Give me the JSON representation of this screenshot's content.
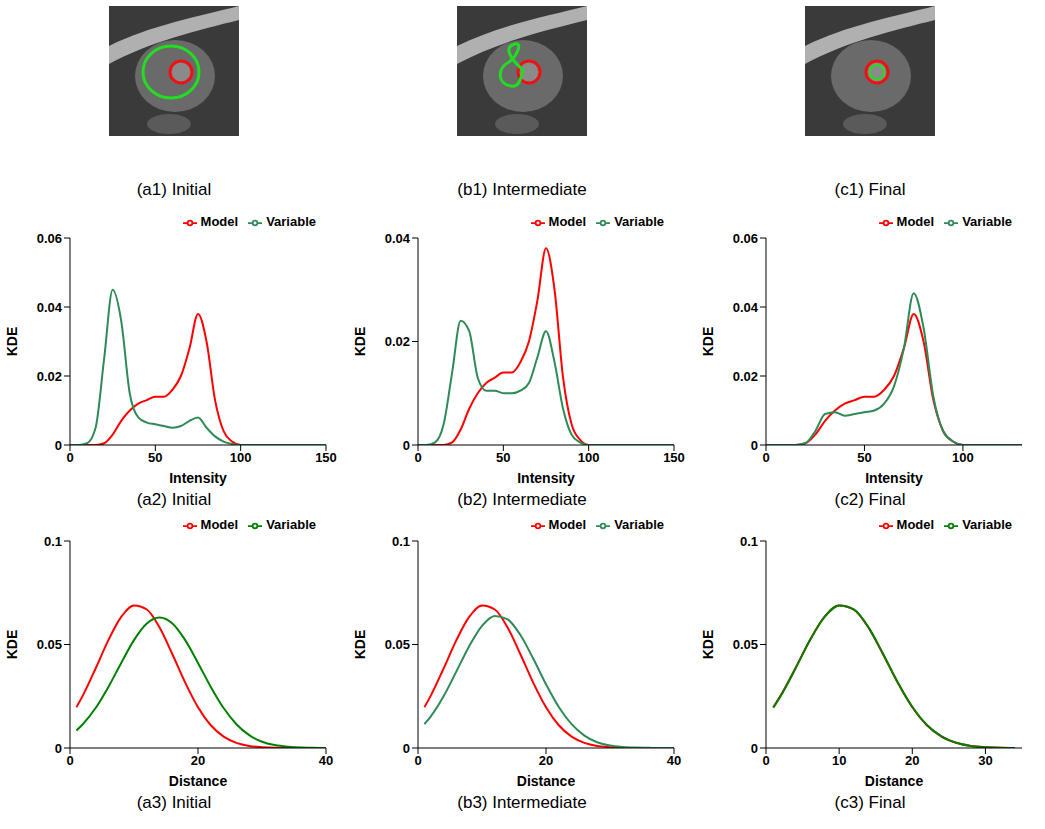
{
  "images": [
    {
      "caption": "(a1) Initial"
    },
    {
      "caption": "(b1) Intermediate"
    },
    {
      "caption": "(c1) Final"
    }
  ],
  "chart_data": [
    {
      "type": "line",
      "title": "(a2) Initial",
      "x_label": "Intensity",
      "y_label": "KDE",
      "legend": "top",
      "x": [
        0,
        5,
        10,
        15,
        20,
        25,
        30,
        35,
        40,
        45,
        50,
        55,
        60,
        65,
        70,
        75,
        80,
        85,
        90,
        95,
        100,
        110,
        120,
        130,
        140,
        150
      ],
      "xlim": [
        0,
        150
      ],
      "xticks": [
        0,
        50,
        100,
        150
      ],
      "ylim": [
        0,
        0.06
      ],
      "yticks": [
        0,
        0.02,
        0.04,
        0.06
      ],
      "series": [
        {
          "name": "Model",
          "color": "#ff0000",
          "values": [
            0,
            0,
            0,
            0,
            0.0005,
            0.003,
            0.007,
            0.01,
            0.012,
            0.013,
            0.014,
            0.014,
            0.016,
            0.02,
            0.028,
            0.038,
            0.03,
            0.013,
            0.004,
            0.001,
            0,
            0,
            0,
            0,
            0,
            0
          ]
        },
        {
          "name": "Variable",
          "color": "#2e8b57",
          "values": [
            0,
            0,
            0.0005,
            0.005,
            0.025,
            0.045,
            0.036,
            0.015,
            0.008,
            0.0065,
            0.006,
            0.0055,
            0.005,
            0.0055,
            0.007,
            0.008,
            0.005,
            0.0025,
            0.001,
            0.0003,
            0,
            0,
            0,
            0,
            0,
            0
          ]
        }
      ]
    },
    {
      "type": "line",
      "title": "(b2) Intermediate",
      "x_label": "Intensity",
      "y_label": "KDE",
      "legend": "top",
      "x": [
        0,
        5,
        10,
        15,
        20,
        25,
        30,
        35,
        40,
        45,
        50,
        55,
        60,
        65,
        70,
        75,
        80,
        85,
        90,
        95,
        100,
        110,
        120,
        130,
        140,
        150
      ],
      "xlim": [
        0,
        150
      ],
      "xticks": [
        0,
        50,
        100,
        150
      ],
      "ylim": [
        0,
        0.04
      ],
      "yticks": [
        0,
        0.02,
        0.04
      ],
      "series": [
        {
          "name": "Model",
          "color": "#ff0000",
          "values": [
            0,
            0,
            0,
            0,
            0.0005,
            0.003,
            0.007,
            0.01,
            0.012,
            0.013,
            0.014,
            0.014,
            0.016,
            0.02,
            0.028,
            0.038,
            0.03,
            0.013,
            0.004,
            0.001,
            0,
            0,
            0,
            0,
            0,
            0
          ]
        },
        {
          "name": "Variable",
          "color": "#2e8b57",
          "values": [
            0,
            0,
            0.0005,
            0.004,
            0.014,
            0.024,
            0.022,
            0.013,
            0.0105,
            0.0105,
            0.01,
            0.01,
            0.0105,
            0.012,
            0.017,
            0.022,
            0.016,
            0.007,
            0.002,
            0.0005,
            0,
            0,
            0,
            0,
            0,
            0
          ]
        }
      ]
    },
    {
      "type": "line",
      "title": "(c2) Final",
      "x_label": "Intensity",
      "y_label": "KDE",
      "legend": "top",
      "x": [
        0,
        5,
        10,
        15,
        20,
        25,
        30,
        35,
        40,
        45,
        50,
        55,
        60,
        65,
        70,
        75,
        80,
        85,
        90,
        95,
        100,
        110,
        120,
        130
      ],
      "xlim": [
        0,
        130
      ],
      "xticks": [
        0,
        50,
        100
      ],
      "ylim": [
        0,
        0.06
      ],
      "yticks": [
        0,
        0.02,
        0.04,
        0.06
      ],
      "series": [
        {
          "name": "Model",
          "color": "#ff0000",
          "values": [
            0,
            0,
            0,
            0,
            0.0005,
            0.003,
            0.007,
            0.01,
            0.012,
            0.013,
            0.014,
            0.014,
            0.016,
            0.02,
            0.028,
            0.038,
            0.03,
            0.013,
            0.004,
            0.001,
            0,
            0,
            0,
            0
          ]
        },
        {
          "name": "Variable",
          "color": "#2e8b57",
          "values": [
            0,
            0,
            0,
            0,
            0.0005,
            0.004,
            0.009,
            0.0095,
            0.0085,
            0.009,
            0.0095,
            0.01,
            0.012,
            0.017,
            0.028,
            0.044,
            0.034,
            0.014,
            0.004,
            0.001,
            0,
            0,
            0,
            0
          ]
        }
      ]
    },
    {
      "type": "line",
      "title": "(a3) Initial",
      "x_label": "Distance",
      "y_label": "KDE",
      "legend": "top",
      "x": [
        1,
        2,
        4,
        6,
        8,
        10,
        12,
        14,
        16,
        18,
        20,
        22,
        24,
        26,
        28,
        30,
        32,
        34,
        36,
        38,
        40
      ],
      "xlim": [
        0,
        40
      ],
      "xticks": [
        0,
        20,
        40
      ],
      "ylim": [
        0,
        0.1
      ],
      "yticks": [
        0,
        0.05,
        0.1
      ],
      "series": [
        {
          "name": "Model",
          "color": "#ff0000",
          "values": [
            0.0197,
            0.0253,
            0.0384,
            0.0521,
            0.0633,
            0.0688,
            0.0669,
            0.0582,
            0.0453,
            0.0316,
            0.0197,
            0.011,
            0.0055,
            0.0025,
            0.001,
            0.0004,
            0.0001,
            0,
            0,
            0,
            0
          ]
        },
        {
          "name": "Variable",
          "color": "#008000",
          "values": [
            0.0085,
            0.0115,
            0.0193,
            0.0295,
            0.0411,
            0.0521,
            0.0601,
            0.063,
            0.0601,
            0.0521,
            0.0411,
            0.0295,
            0.0193,
            0.0115,
            0.0062,
            0.003,
            0.0014,
            0.0006,
            0.0002,
            0.0001,
            0
          ]
        }
      ]
    },
    {
      "type": "line",
      "title": "(b3) Intermediate",
      "x_label": "Distance",
      "y_label": "KDE",
      "legend": "top",
      "x": [
        1,
        2,
        4,
        6,
        8,
        10,
        12,
        14,
        16,
        18,
        20,
        22,
        24,
        26,
        28,
        30,
        32,
        34,
        36,
        38,
        40
      ],
      "xlim": [
        0,
        40
      ],
      "xticks": [
        0,
        20,
        40
      ],
      "ylim": [
        0,
        0.1
      ],
      "yticks": [
        0,
        0.05,
        0.1
      ],
      "series": [
        {
          "name": "Model",
          "color": "#ff0000",
          "values": [
            0.0197,
            0.0253,
            0.0384,
            0.0521,
            0.0633,
            0.0688,
            0.0669,
            0.0582,
            0.0453,
            0.0316,
            0.0197,
            0.011,
            0.0055,
            0.0025,
            0.001,
            0.0004,
            0.0001,
            0,
            0,
            0,
            0
          ]
        },
        {
          "name": "Variable",
          "color": "#2e8b57",
          "values": [
            0.0115,
            0.0153,
            0.025,
            0.037,
            0.0492,
            0.059,
            0.0638,
            0.0621,
            0.0546,
            0.0432,
            0.0308,
            0.0198,
            0.0115,
            0.006,
            0.0028,
            0.0012,
            0.0005,
            0.0002,
            0.0001,
            0,
            0
          ]
        }
      ]
    },
    {
      "type": "line",
      "title": "(c3) Final",
      "x_label": "Distance",
      "y_label": "KDE",
      "legend": "top",
      "x": [
        1,
        2,
        4,
        6,
        8,
        10,
        12,
        14,
        16,
        18,
        20,
        22,
        24,
        26,
        28,
        30,
        32,
        34
      ],
      "xlim": [
        0,
        35
      ],
      "xticks": [
        0,
        10,
        20,
        30
      ],
      "ylim": [
        0,
        0.1
      ],
      "yticks": [
        0,
        0.05,
        0.1
      ],
      "series": [
        {
          "name": "Model",
          "color": "#ff0000",
          "values": [
            0.0197,
            0.0253,
            0.0384,
            0.0521,
            0.0633,
            0.0688,
            0.0669,
            0.0582,
            0.0453,
            0.0316,
            0.0197,
            0.011,
            0.0055,
            0.0025,
            0.001,
            0.0004,
            0.0001,
            0
          ]
        },
        {
          "name": "Variable",
          "color": "#008000",
          "values": [
            0.0195,
            0.0251,
            0.0382,
            0.052,
            0.0633,
            0.0689,
            0.067,
            0.0584,
            0.0455,
            0.0318,
            0.0199,
            0.0111,
            0.0056,
            0.0025,
            0.001,
            0.0004,
            0.0001,
            0
          ]
        }
      ]
    }
  ]
}
